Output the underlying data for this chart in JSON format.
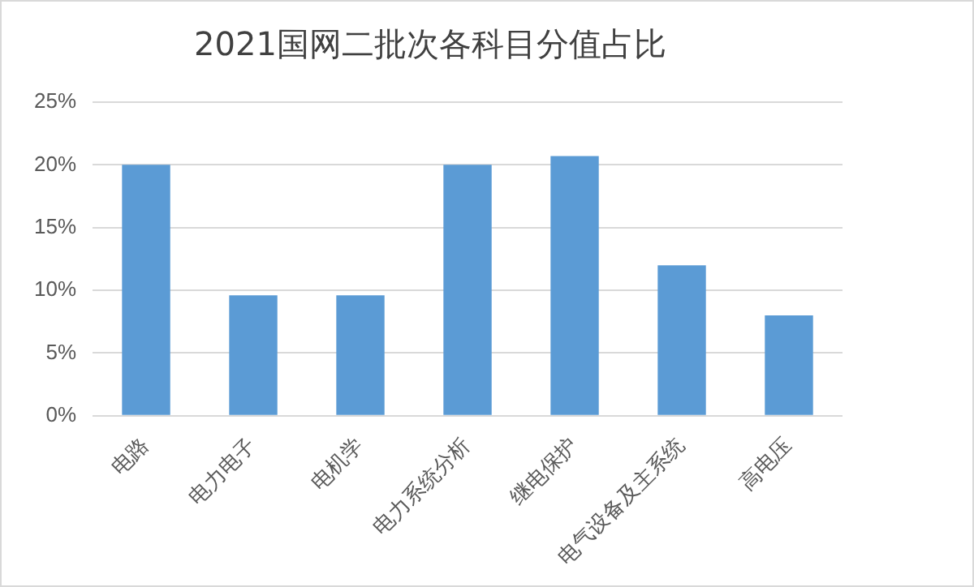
{
  "chart_data": {
    "type": "bar",
    "title": "2021国网二批次各科目分值占比",
    "categories": [
      "电路",
      "电力电子",
      "电机学",
      "电力系统分析",
      "继电保护",
      "电气设备及主系统",
      "高电压"
    ],
    "values": [
      20,
      9.6,
      9.6,
      20,
      20.7,
      12,
      8
    ],
    "color": "#5b9bd5",
    "ylim": [
      0,
      25
    ],
    "yticks": [
      {
        "value": 0,
        "label": "0%"
      },
      {
        "value": 5,
        "label": "5%"
      },
      {
        "value": 10,
        "label": "10%"
      },
      {
        "value": 15,
        "label": "15%"
      },
      {
        "value": 20,
        "label": "20%"
      },
      {
        "value": 25,
        "label": "25%"
      }
    ],
    "grid": "y",
    "legend": false
  }
}
